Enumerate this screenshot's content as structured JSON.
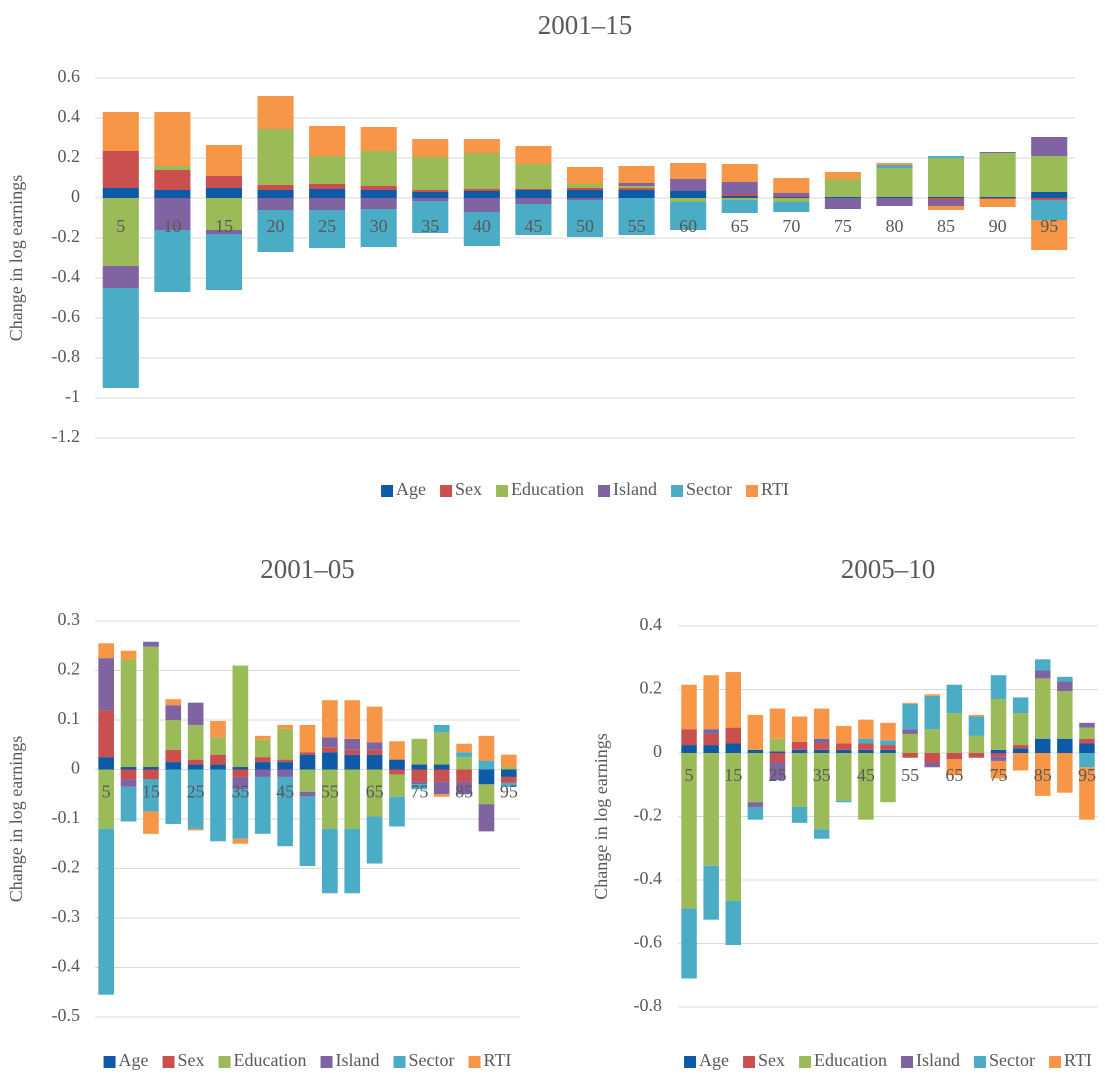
{
  "chart_data": [
    {
      "type": "bar",
      "stacked": true,
      "title": "2001–15",
      "y_label": "Change in log earnings",
      "categories": [
        "5",
        "10",
        "15",
        "20",
        "25",
        "30",
        "35",
        "40",
        "45",
        "50",
        "55",
        "60",
        "65",
        "70",
        "75",
        "80",
        "85",
        "90",
        "95"
      ],
      "ylim": [
        -1.2,
        0.6
      ],
      "yticks": [
        -1.2,
        -1,
        -0.8,
        -0.6,
        -0.4,
        -0.2,
        0,
        0.2,
        0.4,
        0.6
      ],
      "grid": true,
      "legend": "bottom",
      "series": [
        {
          "name": "Age",
          "color": "#0e5aa7",
          "values": [
            0.05,
            0.04,
            0.05,
            0.04,
            0.045,
            0.04,
            0.03,
            0.035,
            0.04,
            0.04,
            0.04,
            0.035,
            0.01,
            0.005,
            0.005,
            0.005,
            0.005,
            0.005,
            0.03
          ]
        },
        {
          "name": "Sex",
          "color": "#c9504f",
          "values": [
            0.185,
            0.1,
            0.06,
            0.025,
            0.025,
            0.02,
            0.01,
            0.01,
            0.005,
            0.01,
            0.01,
            0,
            0.01,
            0.005,
            0,
            0,
            -0.01,
            -0.005,
            -0.01
          ]
        },
        {
          "name": "Education",
          "color": "#9bbb59",
          "values": [
            -0.34,
            0.02,
            -0.16,
            0.28,
            0.14,
            0.175,
            0.165,
            0.18,
            0.125,
            0.02,
            0.01,
            -0.02,
            -0.01,
            -0.02,
            0.09,
            0.145,
            0.195,
            0.22,
            0.18
          ]
        },
        {
          "name": "Island",
          "color": "#8064a2",
          "values": [
            -0.11,
            -0.16,
            -0.02,
            -0.06,
            -0.06,
            -0.055,
            -0.015,
            -0.07,
            -0.03,
            -0.01,
            0.015,
            0.06,
            0.06,
            0.015,
            -0.055,
            -0.04,
            -0.03,
            0.005,
            0.095
          ]
        },
        {
          "name": "Sector",
          "color": "#4bacc6",
          "values": [
            -0.5,
            -0.31,
            -0.28,
            -0.21,
            -0.19,
            -0.19,
            -0.16,
            -0.17,
            -0.155,
            -0.185,
            -0.185,
            -0.14,
            -0.065,
            -0.05,
            0,
            0.015,
            0.01,
            0,
            -0.1
          ]
        },
        {
          "name": "RTI",
          "color": "#f79646",
          "values": [
            0.195,
            0.27,
            0.155,
            0.165,
            0.15,
            0.12,
            0.09,
            0.07,
            0.09,
            0.085,
            0.085,
            0.08,
            0.09,
            0.075,
            0.035,
            0.01,
            -0.02,
            -0.04,
            -0.15
          ]
        }
      ]
    },
    {
      "type": "bar",
      "stacked": true,
      "title": "2001–05",
      "y_label": "Change in log earnings",
      "categories": [
        "5",
        null,
        "15",
        null,
        "25",
        null,
        "35",
        null,
        "45",
        null,
        "55",
        null,
        "65",
        null,
        "75",
        null,
        "85",
        null,
        "95"
      ],
      "ylim": [
        -0.5,
        0.3
      ],
      "yticks": [
        -0.5,
        -0.4,
        -0.3,
        -0.2,
        -0.1,
        0,
        0.1,
        0.2,
        0.3
      ],
      "grid": true,
      "legend": "bottom",
      "series": [
        {
          "name": "Age",
          "color": "#0e5aa7",
          "values": [
            0.025,
            0.005,
            0.005,
            0.015,
            0.01,
            0.01,
            0.005,
            0.015,
            0.015,
            0.03,
            0.035,
            0.03,
            0.03,
            0.02,
            0.01,
            0.01,
            0,
            -0.03,
            -0.015
          ]
        },
        {
          "name": "Sex",
          "color": "#c9504f",
          "values": [
            0.095,
            -0.02,
            -0.02,
            0.025,
            0.01,
            0.02,
            -0.015,
            0.01,
            0.005,
            0.005,
            0.01,
            0.01,
            0.01,
            -0.01,
            -0.025,
            -0.025,
            -0.025,
            0,
            -0.012
          ]
        },
        {
          "name": "Education",
          "color": "#9bbb59",
          "values": [
            -0.12,
            0.217,
            0.243,
            0.06,
            0.07,
            0.035,
            0.205,
            0.035,
            0.062,
            -0.045,
            -0.12,
            -0.12,
            -0.095,
            -0.045,
            0.052,
            0.065,
            0.025,
            -0.04,
            0.005
          ]
        },
        {
          "name": "Island",
          "color": "#8064a2",
          "values": [
            0.105,
            -0.015,
            0.01,
            0.03,
            0.045,
            0,
            -0.025,
            -0.015,
            -0.015,
            -0.01,
            0.02,
            0.022,
            0.015,
            0,
            -0.005,
            -0.025,
            -0.025,
            -0.055,
            0
          ]
        },
        {
          "name": "Sector",
          "color": "#4bacc6",
          "values": [
            -0.335,
            -0.07,
            -0.065,
            -0.11,
            -0.12,
            -0.145,
            -0.1,
            -0.115,
            -0.14,
            -0.14,
            -0.13,
            -0.13,
            -0.095,
            -0.06,
            -0.01,
            0.015,
            0.01,
            0.018,
            -0.008
          ]
        },
        {
          "name": "RTI",
          "color": "#f79646",
          "values": [
            0.03,
            0.018,
            -0.045,
            0.012,
            -0.003,
            0.033,
            -0.01,
            0.008,
            0.008,
            0.055,
            0.075,
            0.078,
            0.072,
            0.037,
            0,
            -0.005,
            0.017,
            0.05,
            0.025
          ]
        }
      ]
    },
    {
      "type": "bar",
      "stacked": true,
      "title": "2005–10",
      "y_label": "Change in log earnings",
      "categories": [
        "5",
        null,
        "15",
        null,
        "25",
        null,
        "35",
        null,
        "45",
        null,
        "55",
        null,
        "65",
        null,
        "75",
        null,
        "85",
        null,
        "95"
      ],
      "ylim": [
        -0.8,
        0.4
      ],
      "yticks": [
        -0.8,
        -0.6,
        -0.4,
        -0.2,
        0,
        0.2,
        0.4
      ],
      "grid": true,
      "legend": "bottom",
      "series": [
        {
          "name": "Age",
          "color": "#0e5aa7",
          "values": [
            0.025,
            0.025,
            0.03,
            0.01,
            0.005,
            0.01,
            0.01,
            0.01,
            0.01,
            0.01,
            0,
            0,
            0,
            0,
            0.01,
            0.015,
            0.045,
            0.045,
            0.03
          ]
        },
        {
          "name": "Sex",
          "color": "#c9504f",
          "values": [
            0.05,
            0.035,
            0.05,
            0,
            -0.03,
            0.025,
            0.02,
            0.02,
            0.02,
            0.015,
            -0.015,
            -0.03,
            -0.02,
            -0.015,
            -0.01,
            0.01,
            0,
            0,
            0.015
          ]
        },
        {
          "name": "Education",
          "color": "#9bbb59",
          "values": [
            -0.49,
            -0.355,
            -0.465,
            -0.155,
            0.04,
            -0.17,
            -0.24,
            -0.15,
            -0.21,
            -0.155,
            0.06,
            0.075,
            0.125,
            0.055,
            0.16,
            0.1,
            0.19,
            0.15,
            0.035
          ]
        },
        {
          "name": "Island",
          "color": "#8064a2",
          "values": [
            0,
            0.015,
            0,
            -0.015,
            -0.055,
            0,
            0.015,
            0,
            0,
            0,
            0.015,
            -0.015,
            0,
            0,
            -0.015,
            0,
            0.025,
            0.03,
            0.015
          ]
        },
        {
          "name": "Sector",
          "color": "#4bacc6",
          "values": [
            -0.22,
            -0.17,
            -0.14,
            -0.04,
            0,
            -0.05,
            -0.03,
            -0.005,
            0.015,
            0.015,
            0.08,
            0.105,
            0.09,
            0.06,
            0.075,
            0.05,
            0.035,
            0.015,
            -0.045
          ]
        },
        {
          "name": "RTI",
          "color": "#f79646",
          "values": [
            0.14,
            0.17,
            0.175,
            0.11,
            0.095,
            0.08,
            0.095,
            0.055,
            0.06,
            0.055,
            0.003,
            0.005,
            -0.05,
            0.005,
            -0.055,
            -0.055,
            -0.135,
            -0.125,
            -0.165
          ]
        }
      ]
    }
  ]
}
